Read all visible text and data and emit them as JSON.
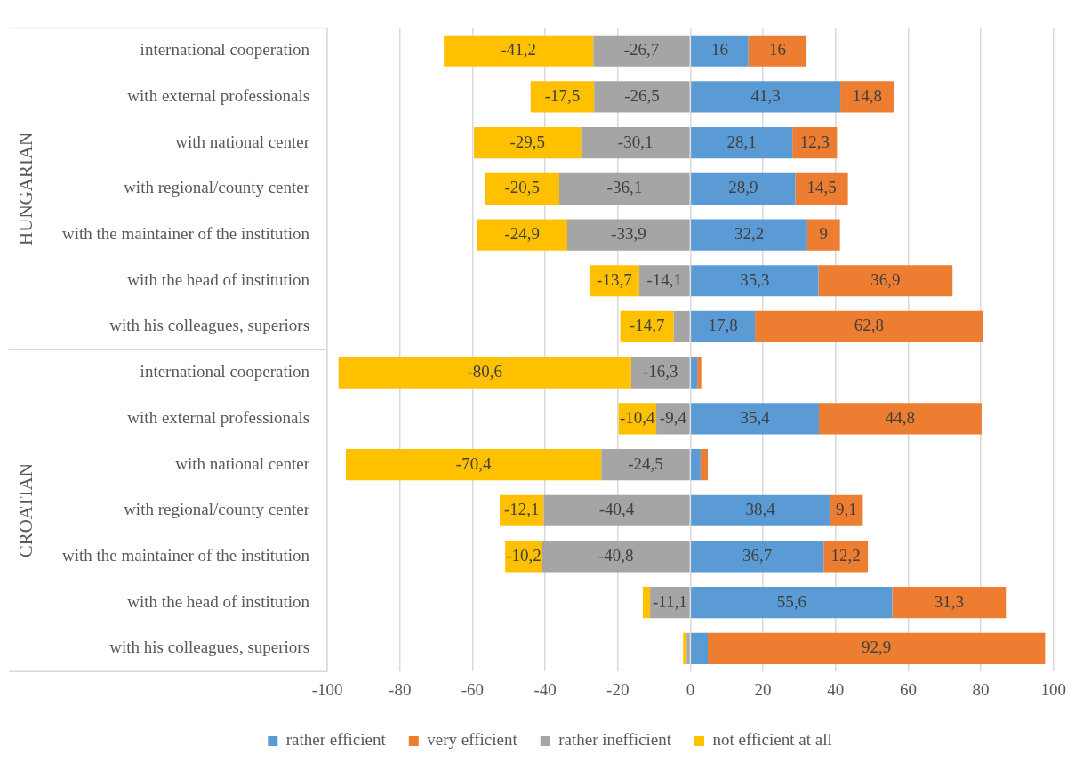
{
  "chart_data": {
    "type": "bar",
    "orientation": "horizontal",
    "stacked": true,
    "categories": [
      "international cooperation",
      "with external professionals",
      "with national center",
      "with regional/county center",
      "with the maintainer of the institution",
      "with the head of institution",
      "with his colleagues, superiors",
      "international cooperation",
      "with external professionals",
      "with national center",
      "with regional/county center",
      "with the maintainer of the institution",
      "with the head of institution",
      "with his colleagues, superiors"
    ],
    "series": [
      {
        "name": "rather efficient",
        "color": "#5b9bd5",
        "values": [
          16,
          41.3,
          28.1,
          28.9,
          32.2,
          35.3,
          17.8,
          1.9,
          35.4,
          2.8,
          38.4,
          36.7,
          55.6,
          4.8
        ],
        "value_labels": [
          "16",
          "41,3",
          "28,1",
          "28,9",
          "32,2",
          "35,3",
          "17,8",
          null,
          "35,4",
          null,
          "38,4",
          "36,7",
          "55,6",
          null
        ]
      },
      {
        "name": "very efficient",
        "color": "#ed7d31",
        "values": [
          16,
          14.8,
          12.3,
          14.5,
          9,
          36.9,
          62.8,
          1.1,
          44.8,
          2.0,
          9.1,
          12.2,
          31.3,
          92.9
        ],
        "value_labels": [
          "16",
          "14,8",
          "12,3",
          "14,5",
          "9",
          "36,9",
          "62,8",
          null,
          "44,8",
          null,
          "9,1",
          "12,2",
          "31,3",
          "92,9"
        ]
      },
      {
        "name": "rather inefficient",
        "color": "#a5a5a5",
        "values": [
          -26.7,
          -26.5,
          -30.1,
          -36.1,
          -33.9,
          -14.1,
          -4.6,
          -16.3,
          -9.4,
          -24.5,
          -40.4,
          -40.8,
          -11.1,
          -1.0
        ],
        "value_labels": [
          "-26,7",
          "-26,5",
          "-30,1",
          "-36,1",
          "-33,9",
          "-14,1",
          null,
          "-16,3",
          "-9,4",
          "-24,5",
          "-40,4",
          "-40,8",
          "-11,1",
          null
        ]
      },
      {
        "name": "not efficient at all",
        "color": "#ffc000",
        "values": [
          -41.2,
          -17.5,
          -29.5,
          -20.5,
          -24.9,
          -13.7,
          -14.7,
          -80.6,
          -10.4,
          -70.4,
          -12.1,
          -10.2,
          -2.0,
          -1.0
        ],
        "value_labels": [
          "-41,2",
          "-17,5",
          "-29,5",
          "-20,5",
          "-24,9",
          "-13,7",
          "-14,7",
          "-80,6",
          "-10,4",
          "-70,4",
          "-12,1",
          "-10,2",
          null,
          null
        ]
      }
    ],
    "xlim": [
      -100,
      100
    ],
    "xticks": [
      -100,
      -80,
      -60,
      -40,
      -20,
      0,
      20,
      40,
      60,
      80,
      100
    ],
    "grid": "x",
    "legend": "bottom",
    "annotations": [
      "HUNGARIAN",
      "CROATIAN"
    ]
  }
}
